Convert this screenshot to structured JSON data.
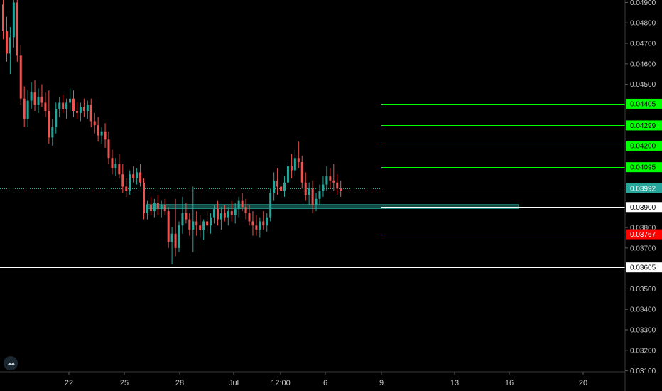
{
  "colors": {
    "background": "#000000",
    "text": "#c8c8c8",
    "axis_line": "#3a3a3a",
    "up_candle": "#26a69a",
    "down_candle": "#ef5350",
    "white_line": "#ffffff",
    "target_green": "#00ff00",
    "stop_red": "#ff0000",
    "zone_fill": "#26a69a",
    "current_price": "#26a69a"
  },
  "logo": {
    "icon": "tradingview-cloud-icon"
  },
  "chart_data": {
    "type": "candlestick",
    "title": "",
    "x_tick_labels": [
      "22",
      "25",
      "28",
      "Jul",
      "12:00",
      "6",
      "9",
      "13",
      "16",
      "20"
    ],
    "y_tick_labels": [
      "0.04900",
      "0.04800",
      "0.04700",
      "0.04600",
      "0.04500",
      "0.03800",
      "0.03700",
      "0.03500",
      "0.03400",
      "0.03300",
      "0.03200",
      "0.03100"
    ],
    "ylim": [
      0.03095,
      0.04912
    ],
    "grid": false,
    "price_lines": [
      {
        "price": 0.04405,
        "label": "0.04405",
        "color": "#00ff00",
        "text_color": "#000000",
        "kind": "target"
      },
      {
        "price": 0.04299,
        "label": "0.04299",
        "color": "#00ff00",
        "text_color": "#000000",
        "kind": "target"
      },
      {
        "price": 0.042,
        "label": "0.04200",
        "color": "#00ff00",
        "text_color": "#000000",
        "kind": "target"
      },
      {
        "price": 0.04095,
        "label": "0.04095",
        "color": "#00ff00",
        "text_color": "#000000",
        "kind": "target"
      },
      {
        "price": 0.03994,
        "label": "0.03994",
        "color": "#ffffff",
        "text_color": "#000000",
        "kind": "level"
      },
      {
        "price": 0.039,
        "label": "0.03900",
        "color": "#ffffff",
        "text_color": "#000000",
        "kind": "level"
      },
      {
        "price": 0.03767,
        "label": "0.03767",
        "color": "#ff0000",
        "text_color": "#ffffff",
        "kind": "stop"
      },
      {
        "price": 0.03605,
        "label": "0.03605",
        "color": "#ffffff",
        "text_color": "#000000",
        "kind": "low"
      }
    ],
    "current_price": {
      "price": 0.03992,
      "label": "0.03992",
      "color": "#26a69a"
    },
    "zone": {
      "top": 0.03912,
      "bottom": 0.03893
    },
    "candles_ohlc": [
      [
        0.0489,
        0.0493,
        0.0472,
        0.0476
      ],
      [
        0.0476,
        0.0483,
        0.0461,
        0.0465
      ],
      [
        0.0465,
        0.0478,
        0.0455,
        0.0473
      ],
      [
        0.0473,
        0.0494,
        0.0468,
        0.049
      ],
      [
        0.049,
        0.0494,
        0.0461,
        0.0464
      ],
      [
        0.0464,
        0.0469,
        0.044,
        0.0443
      ],
      [
        0.0443,
        0.0449,
        0.0429,
        0.0433
      ],
      [
        0.0433,
        0.0447,
        0.0429,
        0.0442
      ],
      [
        0.0442,
        0.0451,
        0.0438,
        0.0446
      ],
      [
        0.0446,
        0.0452,
        0.0437,
        0.044
      ],
      [
        0.044,
        0.0448,
        0.0436,
        0.0444
      ],
      [
        0.0444,
        0.045,
        0.0439,
        0.0441
      ],
      [
        0.0441,
        0.0446,
        0.0434,
        0.0437
      ],
      [
        0.0437,
        0.0447,
        0.0421,
        0.0424
      ],
      [
        0.0424,
        0.0433,
        0.042,
        0.0429
      ],
      [
        0.0429,
        0.0441,
        0.0426,
        0.0438
      ],
      [
        0.0438,
        0.0444,
        0.0434,
        0.0441
      ],
      [
        0.0441,
        0.0445,
        0.0436,
        0.0438
      ],
      [
        0.0438,
        0.0443,
        0.0433,
        0.0441
      ],
      [
        0.0441,
        0.0448,
        0.0437,
        0.0443
      ],
      [
        0.0443,
        0.0447,
        0.0434,
        0.0437
      ],
      [
        0.0437,
        0.0441,
        0.0433,
        0.0436
      ],
      [
        0.0436,
        0.0441,
        0.0432,
        0.0439
      ],
      [
        0.0439,
        0.0443,
        0.0434,
        0.0437
      ],
      [
        0.0437,
        0.0442,
        0.0433,
        0.044
      ],
      [
        0.044,
        0.0443,
        0.0429,
        0.0432
      ],
      [
        0.0432,
        0.0436,
        0.0426,
        0.043
      ],
      [
        0.043,
        0.0434,
        0.0422,
        0.0425
      ],
      [
        0.0425,
        0.0429,
        0.0421,
        0.0427
      ],
      [
        0.0427,
        0.0431,
        0.0419,
        0.0423
      ],
      [
        0.0423,
        0.0427,
        0.0411,
        0.0414
      ],
      [
        0.0414,
        0.0418,
        0.0406,
        0.0409
      ],
      [
        0.0409,
        0.0414,
        0.0405,
        0.0411
      ],
      [
        0.0411,
        0.0416,
        0.0404,
        0.0406
      ],
      [
        0.0406,
        0.0411,
        0.0397,
        0.04
      ],
      [
        0.04,
        0.0404,
        0.0395,
        0.0398
      ],
      [
        0.0398,
        0.0408,
        0.0396,
        0.0406
      ],
      [
        0.0406,
        0.041,
        0.0402,
        0.0404
      ],
      [
        0.0404,
        0.0409,
        0.0401,
        0.0407
      ],
      [
        0.0407,
        0.0411,
        0.04,
        0.0402
      ],
      [
        0.0402,
        0.0404,
        0.0384,
        0.0387
      ],
      [
        0.0387,
        0.0393,
        0.0384,
        0.0391
      ],
      [
        0.0391,
        0.0395,
        0.0386,
        0.0388
      ],
      [
        0.0388,
        0.0394,
        0.0385,
        0.0392
      ],
      [
        0.0392,
        0.0396,
        0.0386,
        0.0389
      ],
      [
        0.0389,
        0.0393,
        0.0385,
        0.0391
      ],
      [
        0.0391,
        0.0394,
        0.0386,
        0.0388
      ],
      [
        0.0388,
        0.039,
        0.037,
        0.0373
      ],
      [
        0.0373,
        0.038,
        0.0362,
        0.0377
      ],
      [
        0.0377,
        0.0394,
        0.0366,
        0.037
      ],
      [
        0.037,
        0.0383,
        0.0368,
        0.0381
      ],
      [
        0.0381,
        0.0395,
        0.0377,
        0.0387
      ],
      [
        0.0387,
        0.0392,
        0.0382,
        0.0384
      ],
      [
        0.0384,
        0.0387,
        0.0376,
        0.0379
      ],
      [
        0.0379,
        0.04,
        0.0368,
        0.0383
      ],
      [
        0.0383,
        0.0388,
        0.0376,
        0.0381
      ],
      [
        0.0381,
        0.0386,
        0.0375,
        0.0379
      ],
      [
        0.0379,
        0.0384,
        0.0374,
        0.0383
      ],
      [
        0.0383,
        0.0388,
        0.0378,
        0.0381
      ],
      [
        0.0381,
        0.0387,
        0.0377,
        0.0385
      ],
      [
        0.0385,
        0.0391,
        0.0382,
        0.0389
      ],
      [
        0.0389,
        0.0393,
        0.0381,
        0.0384
      ],
      [
        0.0384,
        0.039,
        0.0379,
        0.0387
      ],
      [
        0.0387,
        0.0391,
        0.0383,
        0.0385
      ],
      [
        0.0385,
        0.039,
        0.0381,
        0.0388
      ],
      [
        0.0388,
        0.0393,
        0.0383,
        0.0386
      ],
      [
        0.0386,
        0.0392,
        0.0382,
        0.0389
      ],
      [
        0.0389,
        0.0395,
        0.0385,
        0.0393
      ],
      [
        0.0393,
        0.0397,
        0.0388,
        0.039
      ],
      [
        0.039,
        0.0394,
        0.0384,
        0.0387
      ],
      [
        0.0387,
        0.0391,
        0.0381,
        0.0383
      ],
      [
        0.0383,
        0.0388,
        0.0376,
        0.0381
      ],
      [
        0.0381,
        0.0386,
        0.0376,
        0.0379
      ],
      [
        0.0379,
        0.0385,
        0.0375,
        0.0383
      ],
      [
        0.0383,
        0.0388,
        0.0379,
        0.0381
      ],
      [
        0.0381,
        0.0387,
        0.0378,
        0.0385
      ],
      [
        0.0385,
        0.0399,
        0.0383,
        0.0397
      ],
      [
        0.0397,
        0.0407,
        0.0393,
        0.0403
      ],
      [
        0.0403,
        0.0409,
        0.0396,
        0.04
      ],
      [
        0.04,
        0.0406,
        0.0394,
        0.0398
      ],
      [
        0.0398,
        0.0405,
        0.0395,
        0.0402
      ],
      [
        0.0402,
        0.0412,
        0.0399,
        0.041
      ],
      [
        0.041,
        0.0416,
        0.0404,
        0.0408
      ],
      [
        0.0408,
        0.0418,
        0.0405,
        0.0414
      ],
      [
        0.0414,
        0.0422,
        0.0409,
        0.0412
      ],
      [
        0.0412,
        0.0415,
        0.0399,
        0.0402
      ],
      [
        0.0402,
        0.0407,
        0.0393,
        0.0396
      ],
      [
        0.0396,
        0.0402,
        0.0391,
        0.0399
      ],
      [
        0.0399,
        0.0403,
        0.0387,
        0.0391
      ],
      [
        0.0391,
        0.0397,
        0.0388,
        0.0394
      ],
      [
        0.0394,
        0.0401,
        0.0391,
        0.0398
      ],
      [
        0.0398,
        0.0405,
        0.0395,
        0.0401
      ],
      [
        0.0401,
        0.041,
        0.0398,
        0.0405
      ],
      [
        0.0405,
        0.0409,
        0.0399,
        0.0403
      ],
      [
        0.0403,
        0.0411,
        0.0398,
        0.0402
      ],
      [
        0.0402,
        0.0406,
        0.0396,
        0.0399
      ],
      [
        0.0399,
        0.0403,
        0.0395,
        0.0398
      ]
    ]
  }
}
